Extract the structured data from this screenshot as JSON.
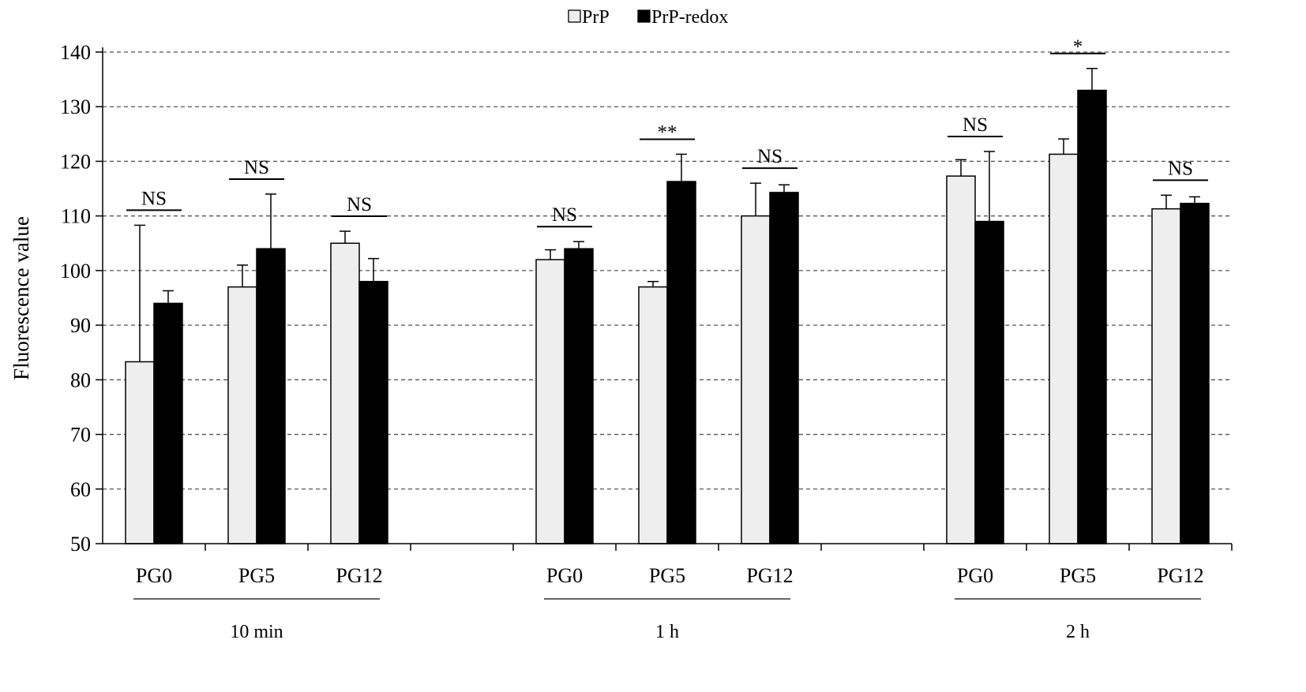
{
  "chart_data": {
    "type": "bar",
    "ylabel": "Fluorescence value",
    "ylim": [
      50,
      140
    ],
    "yticks": [
      50,
      60,
      70,
      80,
      90,
      100,
      110,
      120,
      130,
      140
    ],
    "grid": true,
    "legend_position": "top-center",
    "series": [
      {
        "name": "PrP",
        "color": "#eeeeee"
      },
      {
        "name": "PrP-redox",
        "color": "#000000"
      }
    ],
    "groups": [
      {
        "label": "10 min",
        "categories": [
          {
            "label": "PG0",
            "values": [
              83.3,
              94
            ],
            "errors": [
              25,
              2.3
            ],
            "significance": "NS"
          },
          {
            "label": "PG5",
            "values": [
              97,
              104
            ],
            "errors": [
              4,
              10
            ],
            "significance": "NS"
          },
          {
            "label": "PG12",
            "values": [
              105,
              98
            ],
            "errors": [
              2.2,
              4.2
            ],
            "significance": "NS"
          }
        ]
      },
      {
        "label": "1 h",
        "categories": [
          {
            "label": "PG0",
            "values": [
              102,
              104
            ],
            "errors": [
              1.8,
              1.3
            ],
            "significance": "NS"
          },
          {
            "label": "PG5",
            "values": [
              97,
              116.3
            ],
            "errors": [
              1,
              5
            ],
            "significance": "**"
          },
          {
            "label": "PG12",
            "values": [
              110,
              114.3
            ],
            "errors": [
              6,
              1.4
            ],
            "significance": "NS"
          }
        ]
      },
      {
        "label": "2 h",
        "categories": [
          {
            "label": "PG0",
            "values": [
              117.3,
              109
            ],
            "errors": [
              3,
              12.8
            ],
            "significance": "NS"
          },
          {
            "label": "PG5",
            "values": [
              121.3,
              133
            ],
            "errors": [
              2.8,
              4
            ],
            "significance": "*"
          },
          {
            "label": "PG12",
            "values": [
              111.3,
              112.3
            ],
            "errors": [
              2.5,
              1.2
            ],
            "significance": "NS"
          }
        ]
      }
    ]
  }
}
